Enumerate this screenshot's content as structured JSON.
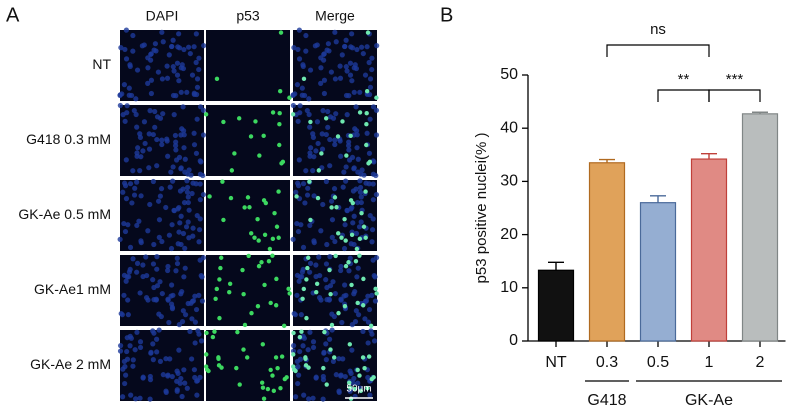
{
  "panel_a": {
    "label": "A",
    "columns": [
      "DAPI",
      "p53",
      "Merge"
    ],
    "rows": [
      "NT",
      "G418 0.3 mM",
      "GK-Ae 0.5 mM",
      "GK-Ae1 mM",
      "GK-Ae 2 mM"
    ],
    "scale_bar": "50μm"
  },
  "chart_data": {
    "type": "bar",
    "panel_label": "B",
    "y_label": "p53 positive nuclei(% )",
    "categories": [
      "NT",
      "0.3",
      "0.5",
      "1",
      "2"
    ],
    "values": [
      13.3,
      33.5,
      26.0,
      34.2,
      42.7
    ],
    "errors": [
      1.5,
      0.6,
      1.3,
      1.0,
      0.3
    ],
    "colors": [
      "#111111",
      "#e0a25a",
      "#95aed2",
      "#e08a84",
      "#b9bdbd"
    ],
    "edge_colors": [
      "#000000",
      "#b06a20",
      "#4a6a9a",
      "#c0403a",
      "#808686"
    ],
    "ylim": [
      0,
      50
    ],
    "yticks": [
      0,
      10,
      20,
      30,
      40,
      50
    ],
    "groups": [
      {
        "label": "G418",
        "categories": [
          "0.3"
        ]
      },
      {
        "label": "GK-Ae",
        "categories": [
          "0.5",
          "1",
          "2"
        ]
      }
    ],
    "significance": [
      {
        "label": "ns",
        "from": "0.3",
        "to": "1"
      },
      {
        "label": "**",
        "from": "0.5",
        "to": "1"
      },
      {
        "label": "***",
        "from": "1",
        "to": "2"
      }
    ]
  }
}
